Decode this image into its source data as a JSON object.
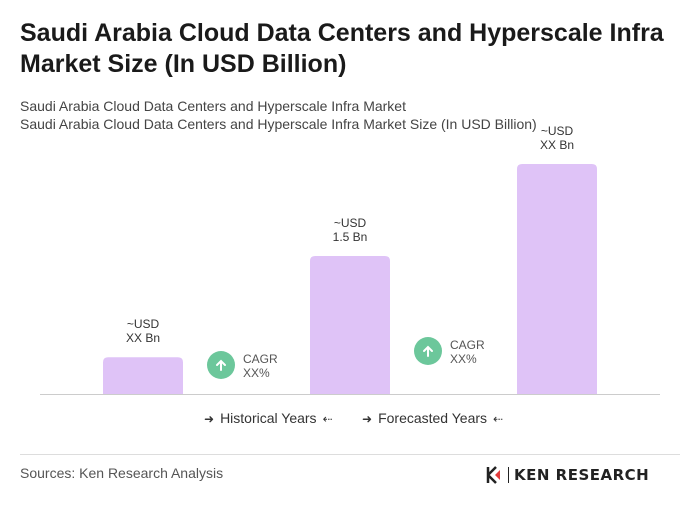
{
  "title": "Saudi Arabia Cloud Data Centers and Hyperscale Infra Market Size (In USD Billion)",
  "subtitle_line1": "Saudi Arabia Cloud Data Centers and Hyperscale Infra Market",
  "subtitle_line2": "Saudi Arabia Cloud Data Centers and Hyperscale Infra Market Size (In USD Billion)",
  "chart_data": {
    "type": "bar",
    "bars": [
      {
        "label_line1": "~USD",
        "label_line2": "XX Bn",
        "value": 0.4
      },
      {
        "label_line1": "~USD",
        "label_line2": "1.5 Bn",
        "value": 1.5
      },
      {
        "label_line1": "~USD",
        "label_line2": "XX Bn",
        "value": 2.5
      }
    ],
    "cagr": [
      {
        "line1": "CAGR",
        "line2": "XX%"
      },
      {
        "line1": "CAGR",
        "line2": "XX%"
      }
    ],
    "ylim": [
      0,
      2.5
    ],
    "grid": false,
    "bar_color": "#dfc3f7",
    "cagr_color": "#6cc79b"
  },
  "legend": {
    "historical": "Historical Years",
    "forecasted": "Forecasted Years",
    "arrow_right": "➜",
    "arrow_left": "⇠"
  },
  "footer": {
    "source": "Sources: Ken Research Analysis",
    "brand": "KEN RESEARCH"
  }
}
